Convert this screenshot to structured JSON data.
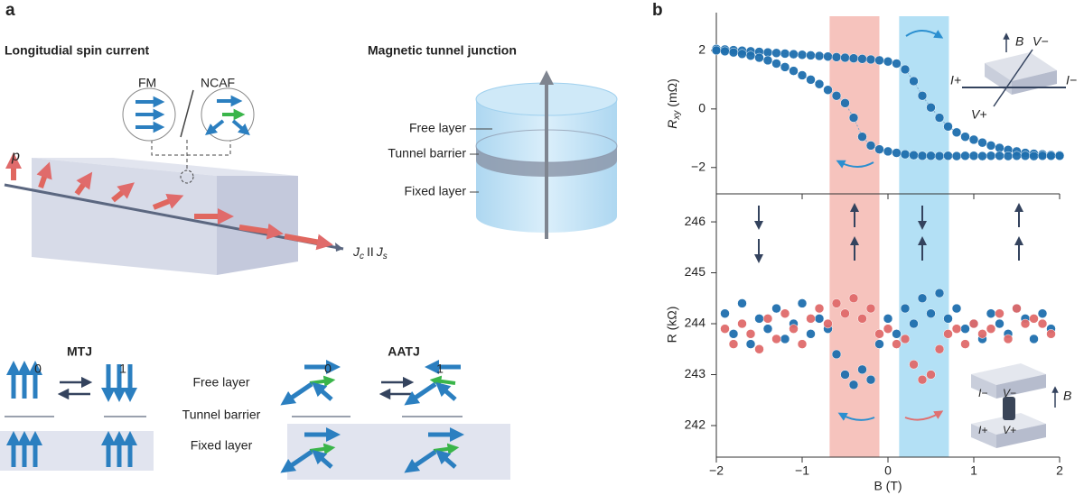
{
  "panel_a": {
    "label": "a",
    "spin_current": {
      "title": "Longitudial spin current",
      "fm": "FM",
      "slash": "/",
      "ncaf": "NCAF",
      "p": "p",
      "j1": "J",
      "s1": "c",
      "par": "II",
      "j2": "J",
      "s2": "s"
    },
    "tunnel_junction": {
      "title": "Magnetic tunnel junction",
      "layers": [
        "Free layer",
        "Tunnel barrier",
        "Fixed layer"
      ]
    },
    "devices": {
      "mtj": "MTJ",
      "aatj": "AATJ",
      "states": [
        "0",
        "1",
        "0",
        "1"
      ],
      "layers": [
        "Free layer",
        "Tunnel barrier",
        "Fixed layer"
      ]
    }
  },
  "panel_b": {
    "label": "b",
    "shaded_bands": [
      {
        "x0": -0.68,
        "x1": -0.1,
        "color": "#f6c3bd"
      },
      {
        "x0": 0.13,
        "x1": 0.71,
        "color": "#b3e0f5"
      }
    ],
    "top_inset": {
      "b": "B",
      "vm": "V−",
      "ip": "I+",
      "im": "I−",
      "vp": "V+"
    },
    "bottom_inset": {
      "im": "I−",
      "vm": "V−",
      "ip": "I+",
      "vp": "V+",
      "b": "B"
    }
  },
  "chart_data": [
    {
      "type": "scatter",
      "ylabel": "R",
      "ylabel_sub": "xy",
      "ylabel_unit": " (mΩ)",
      "x": [
        -2.0,
        -1.9,
        -1.8,
        -1.7,
        -1.6,
        -1.5,
        -1.4,
        -1.3,
        -1.2,
        -1.1,
        -1.0,
        -0.9,
        -0.8,
        -0.7,
        -0.6,
        -0.5,
        -0.4,
        -0.3,
        -0.2,
        -0.1,
        0.0,
        0.1,
        0.2,
        0.3,
        0.4,
        0.5,
        0.6,
        0.7,
        0.8,
        0.9,
        1.0,
        1.1,
        1.2,
        1.3,
        1.4,
        1.5,
        1.6,
        1.7,
        1.8,
        1.9,
        2.0
      ],
      "series": [
        {
          "color": "#1f6fae",
          "values": [
            2.05,
            2.03,
            2.01,
            1.99,
            1.97,
            1.95,
            1.93,
            1.91,
            1.89,
            1.87,
            1.85,
            1.83,
            1.81,
            1.79,
            1.77,
            1.75,
            1.73,
            1.71,
            1.69,
            1.66,
            1.62,
            1.55,
            1.35,
            0.95,
            0.45,
            0.05,
            -0.3,
            -0.6,
            -0.8,
            -0.95,
            -1.05,
            -1.15,
            -1.25,
            -1.33,
            -1.4,
            -1.45,
            -1.5,
            -1.53,
            -1.55,
            -1.57,
            -1.58
          ]
        },
        {
          "color": "#1f6fae",
          "values": [
            2.0,
            1.97,
            1.93,
            1.88,
            1.82,
            1.75,
            1.66,
            1.55,
            1.43,
            1.3,
            1.15,
            1.0,
            0.85,
            0.65,
            0.45,
            0.2,
            -0.3,
            -0.95,
            -1.25,
            -1.38,
            -1.45,
            -1.5,
            -1.55,
            -1.58,
            -1.6,
            -1.6,
            -1.61,
            -1.6,
            -1.61,
            -1.6,
            -1.6,
            -1.61,
            -1.6,
            -1.6,
            -1.61,
            -1.6,
            -1.6,
            -1.61,
            -1.6,
            -1.6,
            -1.6
          ]
        }
      ],
      "xlim": [
        -2,
        2
      ],
      "xticks": [
        -2,
        -1,
        0,
        1,
        2
      ],
      "ylim": [
        -2.9,
        3.29
      ],
      "yticks": [
        {
          "value": -2,
          "label": "−2"
        },
        0,
        2
      ]
    },
    {
      "type": "scatter",
      "ylabel": "R (kΩ)",
      "xlabel": "B (T)",
      "x": [
        -1.9,
        -1.8,
        -1.7,
        -1.6,
        -1.5,
        -1.4,
        -1.3,
        -1.2,
        -1.1,
        -1.0,
        -0.9,
        -0.8,
        -0.7,
        -0.6,
        -0.5,
        -0.4,
        -0.3,
        -0.2,
        -0.1,
        0.0,
        0.1,
        0.2,
        0.3,
        0.4,
        0.5,
        0.6,
        0.7,
        0.8,
        0.9,
        1.0,
        1.1,
        1.2,
        1.3,
        1.4,
        1.5,
        1.6,
        1.7,
        1.8,
        1.9
      ],
      "series": [
        {
          "color": "#1f6fae",
          "values": [
            244.2,
            243.8,
            244.4,
            243.6,
            244.1,
            243.9,
            244.3,
            243.7,
            244.0,
            244.4,
            243.8,
            244.1,
            243.9,
            243.4,
            243.0,
            242.8,
            243.1,
            242.9,
            243.6,
            244.1,
            243.8,
            244.3,
            244.0,
            244.5,
            244.2,
            244.6,
            244.1,
            244.3,
            243.9,
            244.0,
            243.7,
            244.2,
            244.0,
            243.8,
            244.3,
            244.1,
            243.7,
            244.2,
            243.9
          ]
        },
        {
          "color": "#e06b6b",
          "values": [
            243.9,
            243.6,
            244.0,
            243.8,
            243.5,
            244.1,
            243.7,
            244.2,
            243.9,
            243.6,
            244.1,
            244.3,
            244.0,
            244.4,
            244.2,
            244.5,
            244.1,
            244.3,
            243.8,
            243.9,
            243.6,
            243.7,
            243.2,
            242.9,
            243.0,
            243.5,
            243.8,
            243.9,
            243.6,
            244.0,
            243.8,
            243.9,
            244.2,
            243.7,
            244.3,
            244.0,
            244.1,
            244.0,
            243.8
          ]
        }
      ],
      "xlim": [
        -2,
        2
      ],
      "xticks": [
        {
          "value": -2,
          "label": "−2"
        },
        {
          "value": -1,
          "label": "−1"
        },
        0,
        1,
        2
      ],
      "ylim": [
        241.38,
        246.55
      ],
      "yticks": [
        242,
        243,
        244,
        245,
        246
      ]
    }
  ]
}
